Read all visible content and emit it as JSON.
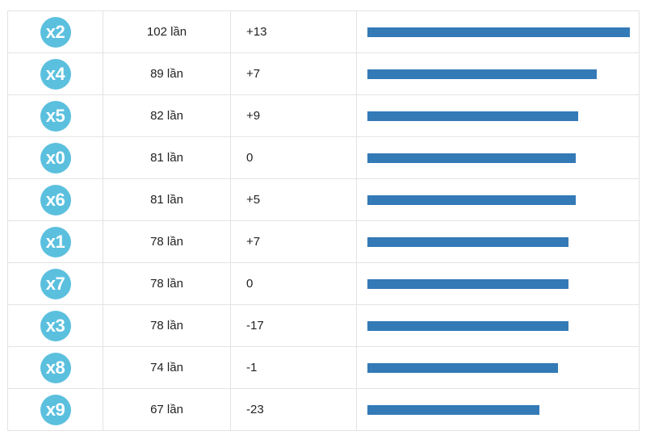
{
  "colors": {
    "badge": "#5bc0de",
    "bar": "#337ab7"
  },
  "chart_data": {
    "type": "bar",
    "orientation": "horizontal",
    "xlim": [
      0,
      102
    ],
    "categories": [
      "x2",
      "x4",
      "x5",
      "x0",
      "x6",
      "x1",
      "x7",
      "x3",
      "x8",
      "x9"
    ],
    "rows": [
      {
        "label": "x2",
        "count": 102,
        "count_text": "102 lần",
        "change": "+13"
      },
      {
        "label": "x4",
        "count": 89,
        "count_text": "89 lần",
        "change": "+7"
      },
      {
        "label": "x5",
        "count": 82,
        "count_text": "82 lần",
        "change": "+9"
      },
      {
        "label": "x0",
        "count": 81,
        "count_text": "81 lần",
        "change": "0"
      },
      {
        "label": "x6",
        "count": 81,
        "count_text": "81 lần",
        "change": "+5"
      },
      {
        "label": "x1",
        "count": 78,
        "count_text": "78 lần",
        "change": "+7"
      },
      {
        "label": "x7",
        "count": 78,
        "count_text": "78 lần",
        "change": "0"
      },
      {
        "label": "x3",
        "count": 78,
        "count_text": "78 lần",
        "change": "-17"
      },
      {
        "label": "x8",
        "count": 74,
        "count_text": "74 lần",
        "change": "-1"
      },
      {
        "label": "x9",
        "count": 67,
        "count_text": "67 lần",
        "change": "-23"
      }
    ]
  }
}
